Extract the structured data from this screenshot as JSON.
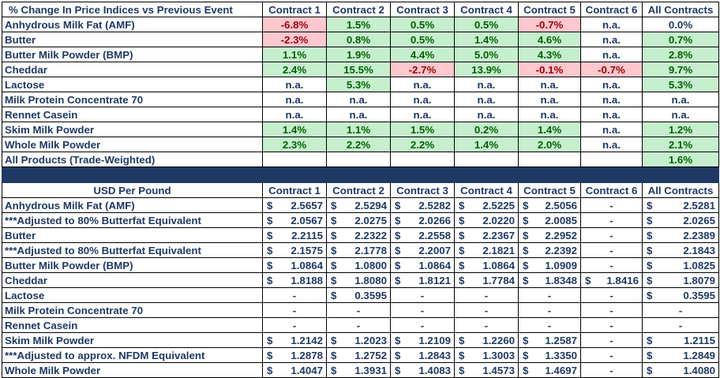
{
  "top": {
    "title": "% Change In Price Indices vs Previous Event",
    "columns": [
      "Contract 1",
      "Contract 2",
      "Contract 3",
      "Contract 4",
      "Contract 5",
      "Contract 6",
      "All Contracts"
    ],
    "rows": [
      {
        "label": "Anhydrous Milk Fat (AMF)",
        "values": [
          "-6.8%",
          "1.5%",
          "0.5%",
          "0.5%",
          "-0.7%",
          "n.a.",
          "0.0%"
        ]
      },
      {
        "label": "Butter",
        "values": [
          "-2.3%",
          "0.8%",
          "0.5%",
          "1.4%",
          "4.6%",
          "n.a.",
          "0.7%"
        ]
      },
      {
        "label": "Butter Milk Powder (BMP)",
        "values": [
          "1.1%",
          "1.9%",
          "4.4%",
          "5.0%",
          "4.3%",
          "n.a.",
          "2.8%"
        ]
      },
      {
        "label": "Cheddar",
        "values": [
          "2.4%",
          "15.5%",
          "-2.7%",
          "13.9%",
          "-0.1%",
          "-0.7%",
          "9.7%"
        ]
      },
      {
        "label": "Lactose",
        "values": [
          "n.a.",
          "5.3%",
          "n.a.",
          "n.a.",
          "n.a.",
          "n.a.",
          "5.3%"
        ]
      },
      {
        "label": "Milk Protein Concentrate 70",
        "values": [
          "n.a.",
          "n.a.",
          "n.a.",
          "n.a.",
          "n.a.",
          "n.a.",
          "n.a."
        ]
      },
      {
        "label": "Rennet Casein",
        "values": [
          "n.a.",
          "n.a.",
          "n.a.",
          "n.a.",
          "n.a.",
          "n.a.",
          "n.a."
        ]
      },
      {
        "label": "Skim Milk Powder",
        "values": [
          "1.4%",
          "1.1%",
          "1.5%",
          "0.2%",
          "1.4%",
          "n.a.",
          "1.2%"
        ]
      },
      {
        "label": "Whole Milk Powder",
        "values": [
          "2.3%",
          "2.2%",
          "2.2%",
          "1.4%",
          "2.0%",
          "n.a.",
          "2.1%"
        ]
      },
      {
        "label": "All Products (Trade-Weighted)",
        "values": [
          "",
          "",
          "",
          "",
          "",
          "",
          "1.6%"
        ]
      }
    ]
  },
  "bottom": {
    "title": "USD Per Pound",
    "columns": [
      "Contract 1",
      "Contract 2",
      "Contract 3",
      "Contract 4",
      "Contract 5",
      "Contract 6",
      "All Contracts"
    ],
    "currency": "$",
    "rows": [
      {
        "label": "Anhydrous Milk Fat (AMF)",
        "values": [
          "2.5657",
          "2.5294",
          "2.5282",
          "2.5225",
          "2.5056",
          "-",
          "2.5281"
        ]
      },
      {
        "label": "***Adjusted to 80%  Butterfat Equivalent",
        "values": [
          "2.0567",
          "2.0275",
          "2.0266",
          "2.0220",
          "2.0085",
          "-",
          "2.0265"
        ]
      },
      {
        "label": "Butter",
        "values": [
          "2.2115",
          "2.2322",
          "2.2558",
          "2.2367",
          "2.2952",
          "-",
          "2.2389"
        ]
      },
      {
        "label": "***Adjusted to 80%  Butterfat Equivalent",
        "values": [
          "2.1575",
          "2.1778",
          "2.2007",
          "2.1821",
          "2.2392",
          "-",
          "2.1843"
        ]
      },
      {
        "label": "Butter Milk Powder (BMP)",
        "values": [
          "1.0864",
          "1.0800",
          "1.0864",
          "1.0864",
          "1.0909",
          "-",
          "1.0825"
        ]
      },
      {
        "label": "Cheddar",
        "values": [
          "1.8188",
          "1.8080",
          "1.8121",
          "1.7784",
          "1.8348",
          "1.8416",
          "1.8079"
        ]
      },
      {
        "label": "Lactose",
        "values": [
          "-",
          "0.3595",
          "-",
          "-",
          "-",
          "-",
          "0.3595"
        ]
      },
      {
        "label": "Milk Protein Concentrate 70",
        "values": [
          "-",
          "-",
          "-",
          "-",
          "-",
          "-",
          "-"
        ]
      },
      {
        "label": "Rennet Casein",
        "values": [
          "-",
          "-",
          "-",
          "-",
          "-",
          "-",
          "-"
        ]
      },
      {
        "label": "Skim Milk Powder",
        "values": [
          "1.2142",
          "1.2023",
          "1.2109",
          "1.2260",
          "1.2587",
          "-",
          "1.2115"
        ]
      },
      {
        "label": "***Adjusted to approx. NFDM Equivalent",
        "values": [
          "1.2878",
          "1.2752",
          "1.2843",
          "1.3003",
          "1.3350",
          "-",
          "1.2849"
        ]
      },
      {
        "label": "Whole Milk Powder",
        "values": [
          "1.4047",
          "1.3931",
          "1.4083",
          "1.4573",
          "1.4697",
          "-",
          "1.4080"
        ]
      }
    ]
  },
  "colors": {
    "text": "#1f3864",
    "positive_fill": "#c6efce",
    "positive_text": "#006100",
    "negative_fill": "#ffc7ce",
    "negative_text": "#9c0006",
    "separator": "#1f3864"
  }
}
